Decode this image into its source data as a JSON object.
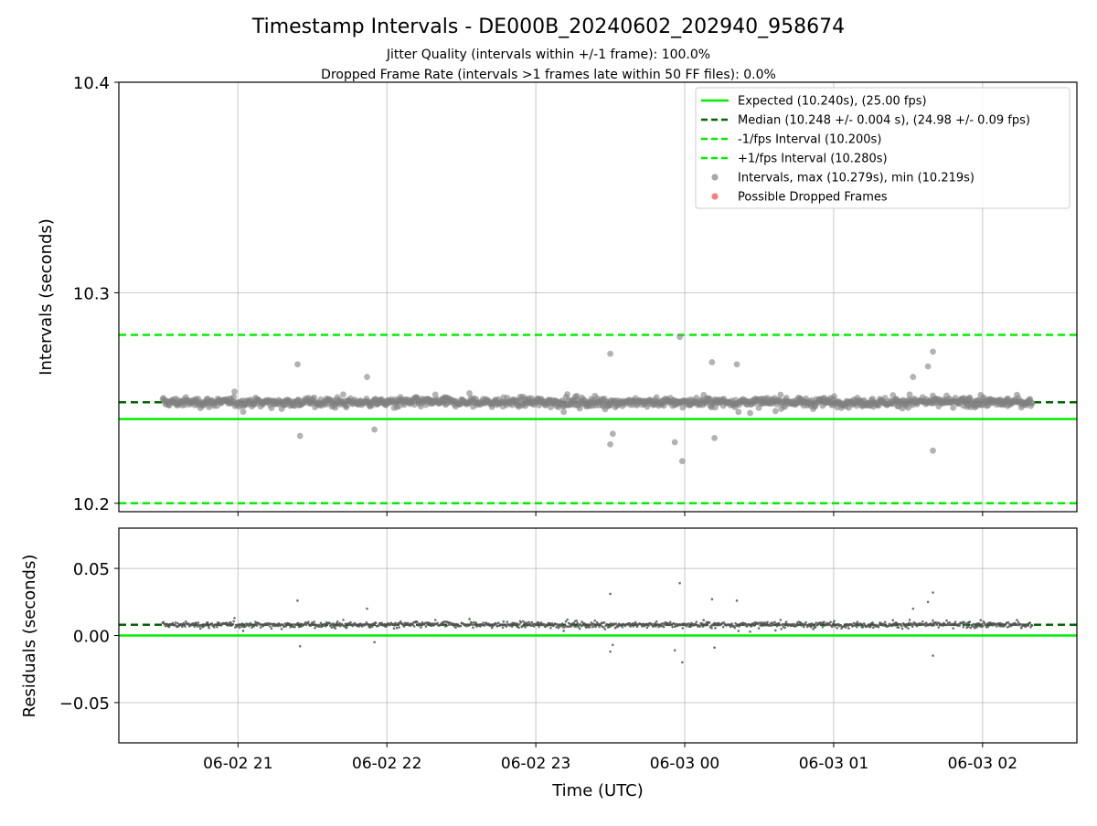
{
  "title": "Timestamp Intervals - DE000B_20240602_202940_958674",
  "subtitle_lines": [
    "Jitter Quality (intervals within +/-1 frame): 100.0%",
    "Dropped Frame Rate (intervals >1 frames late within 50 FF files): 0.0%"
  ],
  "colors": {
    "expected": "#00ee00",
    "median": "#006400",
    "interval_bounds": "#00ee00",
    "points": "#808080",
    "dropped": "#ff4444",
    "grid": "#b0b0b0"
  },
  "chart_data": [
    {
      "type": "scatter",
      "panel": "top",
      "ylabel": "Intervals (seconds)",
      "ylim": [
        10.196,
        10.4
      ],
      "yticks": [
        "10.2",
        "10.3",
        "10.4"
      ],
      "grid": true,
      "legend_position": "top-right",
      "reference_lines": [
        {
          "name": "Expected (10.240s), (25.00 fps)",
          "y": 10.24,
          "style": "solid"
        },
        {
          "name": "Median (10.248 +/- 0.004 s), (24.98 +/- 0.09 fps)",
          "y": 10.248,
          "style": "dashed-dark"
        },
        {
          "name": "-1/fps Interval (10.200s)",
          "y": 10.2,
          "style": "dashed"
        },
        {
          "name": "+1/fps Interval (10.280s)",
          "y": 10.28,
          "style": "dashed"
        }
      ],
      "series": [
        {
          "name": "Intervals, max (10.279s), min (10.219s)",
          "x_start": "2024-06-02T20:29:40",
          "x_end": "2024-06-03T02:20:00",
          "point_count": 2000,
          "median": 10.248,
          "typical_spread": 0.004,
          "max": 10.279,
          "min": 10.219,
          "outliers": [
            {
              "t": "2024-06-02T21:24:00",
              "y": 10.266
            },
            {
              "t": "2024-06-02T21:25:00",
              "y": 10.232
            },
            {
              "t": "2024-06-02T21:55:00",
              "y": 10.235
            },
            {
              "t": "2024-06-02T21:52:00",
              "y": 10.26
            },
            {
              "t": "2024-06-02T23:30:00",
              "y": 10.271
            },
            {
              "t": "2024-06-02T23:30:00",
              "y": 10.228
            },
            {
              "t": "2024-06-02T23:31:00",
              "y": 10.233
            },
            {
              "t": "2024-06-02T23:56:00",
              "y": 10.229
            },
            {
              "t": "2024-06-02T23:58:00",
              "y": 10.279
            },
            {
              "t": "2024-06-02T23:59:00",
              "y": 10.22
            },
            {
              "t": "2024-06-03T00:12:00",
              "y": 10.231
            },
            {
              "t": "2024-06-03T00:11:00",
              "y": 10.267
            },
            {
              "t": "2024-06-03T00:21:00",
              "y": 10.266
            },
            {
              "t": "2024-06-03T01:38:00",
              "y": 10.265
            },
            {
              "t": "2024-06-03T01:40:00",
              "y": 10.272
            },
            {
              "t": "2024-06-03T01:40:00",
              "y": 10.225
            },
            {
              "t": "2024-06-03T01:32:00",
              "y": 10.26
            }
          ]
        },
        {
          "name": "Possible Dropped Frames",
          "count": 0
        }
      ]
    },
    {
      "type": "scatter",
      "panel": "bottom",
      "xlabel": "Time (UTC)",
      "ylabel": "Residuals (seconds)",
      "ylim": [
        -0.08,
        0.08
      ],
      "yticks": [
        "−0.05",
        "0.00",
        "0.05"
      ],
      "ytick_values": [
        -0.05,
        0,
        0.05
      ],
      "xlim": [
        "2024-06-02T20:12:00",
        "2024-06-03T02:38:00"
      ],
      "xticks": [
        "06-02 21",
        "06-02 22",
        "06-02 23",
        "06-03 00",
        "06-03 01",
        "06-03 02"
      ],
      "xtick_times": [
        "2024-06-02T21:00:00",
        "2024-06-02T22:00:00",
        "2024-06-02T23:00:00",
        "2024-06-03T00:00:00",
        "2024-06-03T01:00:00",
        "2024-06-03T02:00:00"
      ],
      "grid": true,
      "reference_lines": [
        {
          "name": "Expected",
          "y": 0,
          "style": "solid"
        },
        {
          "name": "Median",
          "y": 0.008,
          "style": "dashed-dark"
        }
      ],
      "series": [
        {
          "name": "Residuals",
          "median": 0.008,
          "typical_spread": 0.004,
          "max": 0.039,
          "min": -0.021
        }
      ]
    }
  ]
}
